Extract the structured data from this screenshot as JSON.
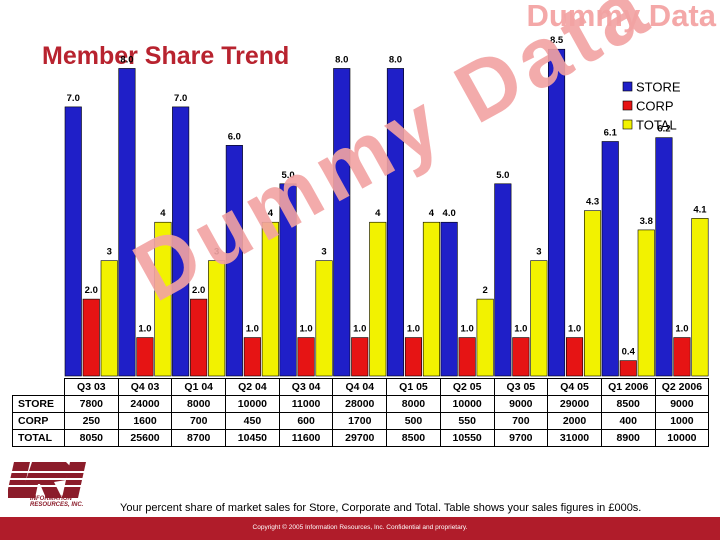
{
  "watermark_top": "Dummy Data",
  "watermark_diagonal": "Dummy Data",
  "title": "Member Share Trend",
  "caption": "Your percent share of market sales for Store, Corporate and Total. Table shows your sales figures in £000s.",
  "copyright": "Copyright © 2005 Information Resources, Inc. Confidential and proprietary.",
  "logo": {
    "mark": "IRI",
    "line1": "INFORMATION",
    "line2": "RESOURCES, INC."
  },
  "chart_data": {
    "type": "bar",
    "title": "Member Share Trend",
    "categories": [
      "Q3 03",
      "Q4 03",
      "Q1 04",
      "Q2 04",
      "Q3 04",
      "Q4 04",
      "Q1 05",
      "Q2 05",
      "Q3 05",
      "Q4 05",
      "Q1 2006",
      "Q2 2006"
    ],
    "series": [
      {
        "name": "STORE",
        "color": "#1f1fc8",
        "values": [
          7.0,
          8.0,
          7.0,
          6.0,
          5.0,
          8.0,
          8.0,
          4.0,
          5.0,
          8.5,
          6.1,
          6.2
        ],
        "labels": [
          "7.0",
          "8.0",
          "7.0",
          "6.0",
          "5.0",
          "8.0",
          "8.0",
          "4.0",
          "5.0",
          "8.5",
          "6.1",
          "6.2"
        ]
      },
      {
        "name": "CORP",
        "color": "#e61414",
        "values": [
          2.0,
          1.0,
          2.0,
          1.0,
          1.0,
          1.0,
          1.0,
          1.0,
          1.0,
          1.0,
          0.4,
          1.0
        ],
        "labels": [
          "2.0",
          "1.0",
          "2.0",
          "1.0",
          "1.0",
          "1.0",
          "1.0",
          "1.0",
          "1.0",
          "1.0",
          "0.4",
          "1.0"
        ]
      },
      {
        "name": "TOTAL",
        "color": "#f2f200",
        "values": [
          3,
          4,
          3,
          4,
          3,
          4,
          4,
          2,
          3,
          4.3,
          3.8,
          4.1
        ],
        "labels": [
          "3",
          "4",
          "3",
          "4",
          "3",
          "4",
          "4",
          "2",
          "3",
          "4.3",
          "3.8",
          "4.1"
        ]
      }
    ],
    "legend_position": "top-right",
    "ylim": [
      0,
      9
    ],
    "grid": false
  },
  "table": {
    "rows": [
      {
        "label": "STORE",
        "values": [
          "7800",
          "24000",
          "8000",
          "10000",
          "11000",
          "28000",
          "8000",
          "10000",
          "9000",
          "29000",
          "8500",
          "9000"
        ]
      },
      {
        "label": "CORP",
        "values": [
          "250",
          "1600",
          "700",
          "450",
          "600",
          "1700",
          "500",
          "550",
          "700",
          "2000",
          "400",
          "1000"
        ]
      },
      {
        "label": "TOTAL",
        "values": [
          "8050",
          "25600",
          "8700",
          "10450",
          "11600",
          "29700",
          "8500",
          "10550",
          "9700",
          "31000",
          "8900",
          "10000"
        ]
      }
    ]
  }
}
